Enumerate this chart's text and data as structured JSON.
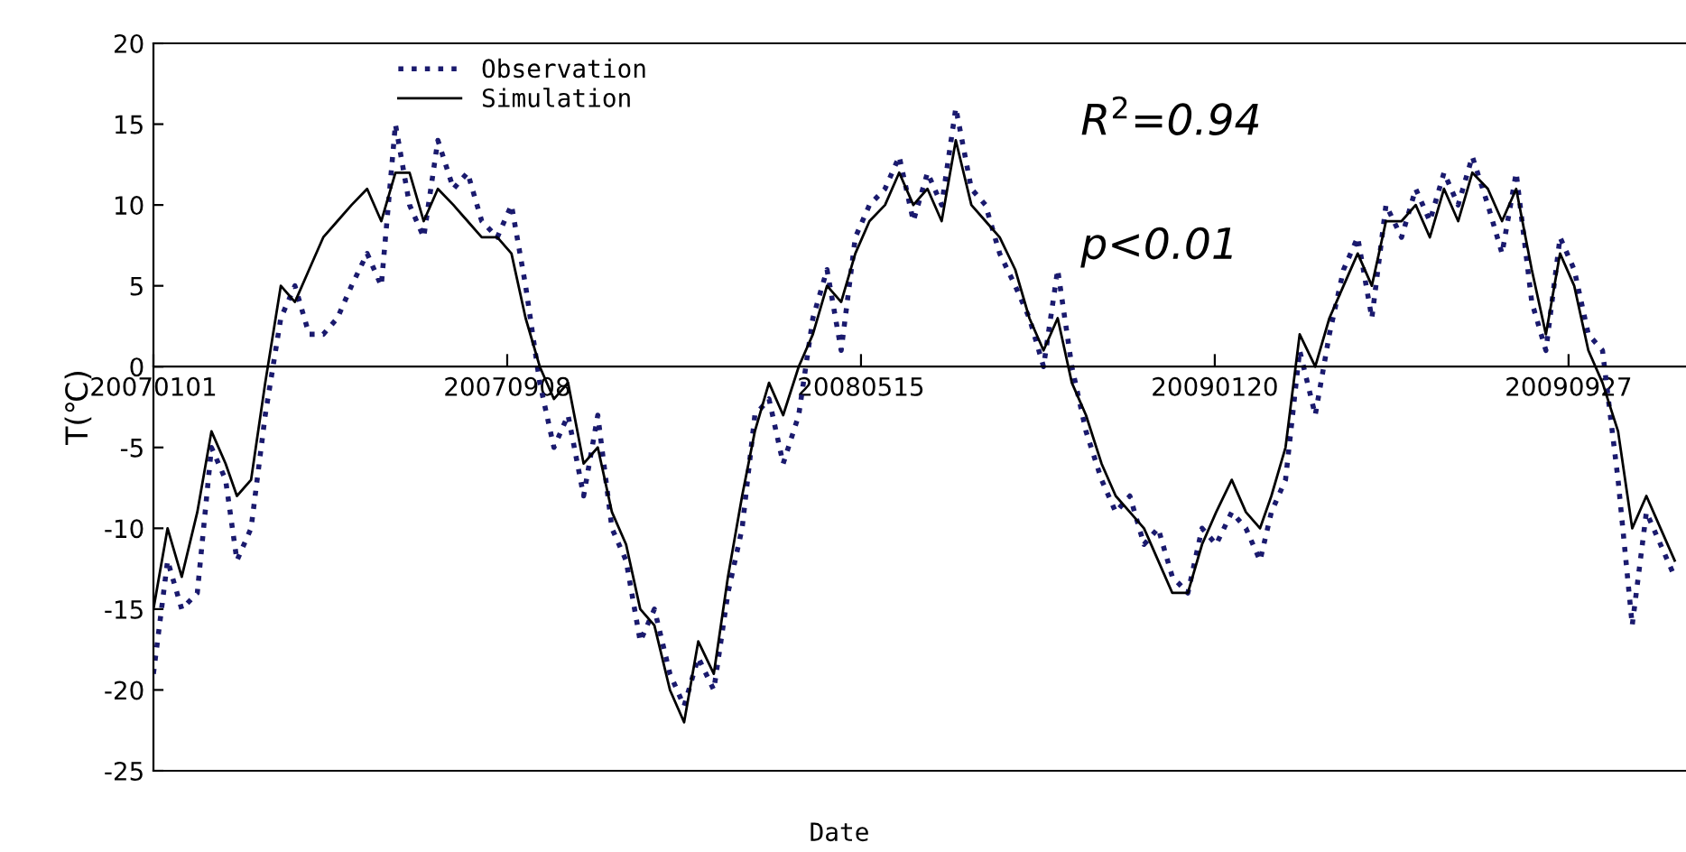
{
  "chart_data": {
    "type": "line",
    "xlabel": "Date",
    "ylabel": "T(℃)",
    "x": [
      "2007-01-01",
      "2007-01-11",
      "2007-01-21",
      "2007-02-01",
      "2007-02-11",
      "2007-02-21",
      "2007-03-01",
      "2007-03-11",
      "2007-03-21",
      "2007-04-01",
      "2007-04-11",
      "2007-04-21",
      "2007-05-01",
      "2007-05-11",
      "2007-05-21",
      "2007-06-01",
      "2007-06-11",
      "2007-06-21",
      "2007-07-01",
      "2007-07-11",
      "2007-07-21",
      "2007-08-01",
      "2007-08-11",
      "2007-08-21",
      "2007-09-01",
      "2007-09-11",
      "2007-09-21",
      "2007-10-01",
      "2007-10-11",
      "2007-10-21",
      "2007-11-01",
      "2007-11-11",
      "2007-11-21",
      "2007-12-01",
      "2007-12-11",
      "2007-12-21",
      "2008-01-01",
      "2008-01-11",
      "2008-01-21",
      "2008-02-01",
      "2008-02-11",
      "2008-02-21",
      "2008-03-01",
      "2008-03-11",
      "2008-03-21",
      "2008-04-01",
      "2008-04-11",
      "2008-04-21",
      "2008-05-01",
      "2008-05-11",
      "2008-05-21",
      "2008-06-01",
      "2008-06-11",
      "2008-06-21",
      "2008-07-01",
      "2008-07-11",
      "2008-07-21",
      "2008-08-01",
      "2008-08-11",
      "2008-08-21",
      "2008-09-01",
      "2008-09-11",
      "2008-09-21",
      "2008-10-01",
      "2008-10-11",
      "2008-10-21",
      "2008-11-01",
      "2008-11-11",
      "2008-11-21",
      "2008-12-01",
      "2008-12-11",
      "2008-12-21",
      "2009-01-01",
      "2009-01-11",
      "2009-01-21",
      "2009-02-01",
      "2009-02-11",
      "2009-02-21",
      "2009-03-01",
      "2009-03-11",
      "2009-03-21",
      "2009-04-01",
      "2009-04-11",
      "2009-04-21",
      "2009-05-01",
      "2009-05-11",
      "2009-05-21",
      "2009-06-01",
      "2009-06-11",
      "2009-06-21",
      "2009-07-01",
      "2009-07-11",
      "2009-07-21",
      "2009-08-01",
      "2009-08-11",
      "2009-08-21",
      "2009-09-01",
      "2009-09-11",
      "2009-09-21",
      "2009-10-01",
      "2009-10-11",
      "2009-10-21",
      "2009-11-01",
      "2009-11-11",
      "2009-11-21",
      "2009-12-01",
      "2009-12-11"
    ],
    "series": [
      {
        "name": "Observation",
        "color": "#1a1a6e",
        "line_style": "dotted",
        "values": [
          -19,
          -12,
          -15,
          -14,
          -5,
          -7,
          -12,
          -10,
          -3,
          3,
          5,
          2,
          2,
          3,
          5,
          7,
          5,
          15,
          10,
          8,
          14,
          11,
          12,
          9,
          8,
          10,
          5,
          -1,
          -5,
          -3,
          -8,
          -3,
          -10,
          -12,
          -17,
          -15,
          -19,
          -21,
          -18,
          -20,
          -14,
          -10,
          -3,
          -2,
          -6,
          -3,
          3,
          6,
          1,
          8,
          10,
          11,
          13,
          9,
          12,
          10,
          16,
          11,
          10,
          7,
          5,
          3,
          0,
          6,
          0,
          -4,
          -7,
          -9,
          -8,
          -11,
          -10,
          -13,
          -14,
          -10,
          -11,
          -9,
          -10,
          -12,
          -9,
          -7,
          1,
          -3,
          2,
          6,
          8,
          3,
          10,
          8,
          11,
          9,
          12,
          10,
          13,
          10,
          7,
          12,
          4,
          1,
          8,
          6,
          2,
          1,
          -7,
          -16,
          -9,
          -11,
          -13
        ]
      },
      {
        "name": "Simulation",
        "color": "#000000",
        "line_style": "solid",
        "values": [
          -15,
          -10,
          -13,
          -9,
          -4,
          -6,
          -8,
          -7,
          -1,
          5,
          4,
          6,
          8,
          9,
          10,
          11,
          9,
          12,
          12,
          9,
          11,
          10,
          9,
          8,
          8,
          7,
          3,
          0,
          -2,
          -1,
          -6,
          -5,
          -9,
          -11,
          -15,
          -16,
          -20,
          -22,
          -17,
          -19,
          -13,
          -8,
          -4,
          -1,
          -3,
          0,
          2,
          5,
          4,
          7,
          9,
          10,
          12,
          10,
          11,
          9,
          14,
          10,
          9,
          8,
          6,
          3,
          1,
          3,
          -1,
          -3,
          -6,
          -8,
          -9,
          -10,
          -12,
          -14,
          -14,
          -11,
          -9,
          -7,
          -9,
          -10,
          -8,
          -5,
          2,
          0,
          3,
          5,
          7,
          5,
          9,
          9,
          10,
          8,
          11,
          9,
          12,
          11,
          9,
          11,
          6,
          2,
          7,
          5,
          1,
          -1,
          -4,
          -10,
          -8,
          -10,
          -12
        ]
      }
    ],
    "xlim": [
      "2007-01-01",
      "2009-12-19"
    ],
    "xticks": [
      {
        "value": "2007-01-01",
        "label": "20070101"
      },
      {
        "value": "2007-09-08",
        "label": "20070908"
      },
      {
        "value": "2008-05-15",
        "label": "20080515"
      },
      {
        "value": "2009-01-20",
        "label": "20090120"
      },
      {
        "value": "2009-09-27",
        "label": "20090927"
      }
    ],
    "ylim": [
      -25,
      20
    ],
    "yticks": [
      -25,
      -20,
      -15,
      -10,
      -5,
      0,
      5,
      10,
      15,
      20
    ],
    "annotations": [
      "R$^{2}$=0.94",
      "p<0.01"
    ],
    "legend": "top left",
    "grid": false
  }
}
